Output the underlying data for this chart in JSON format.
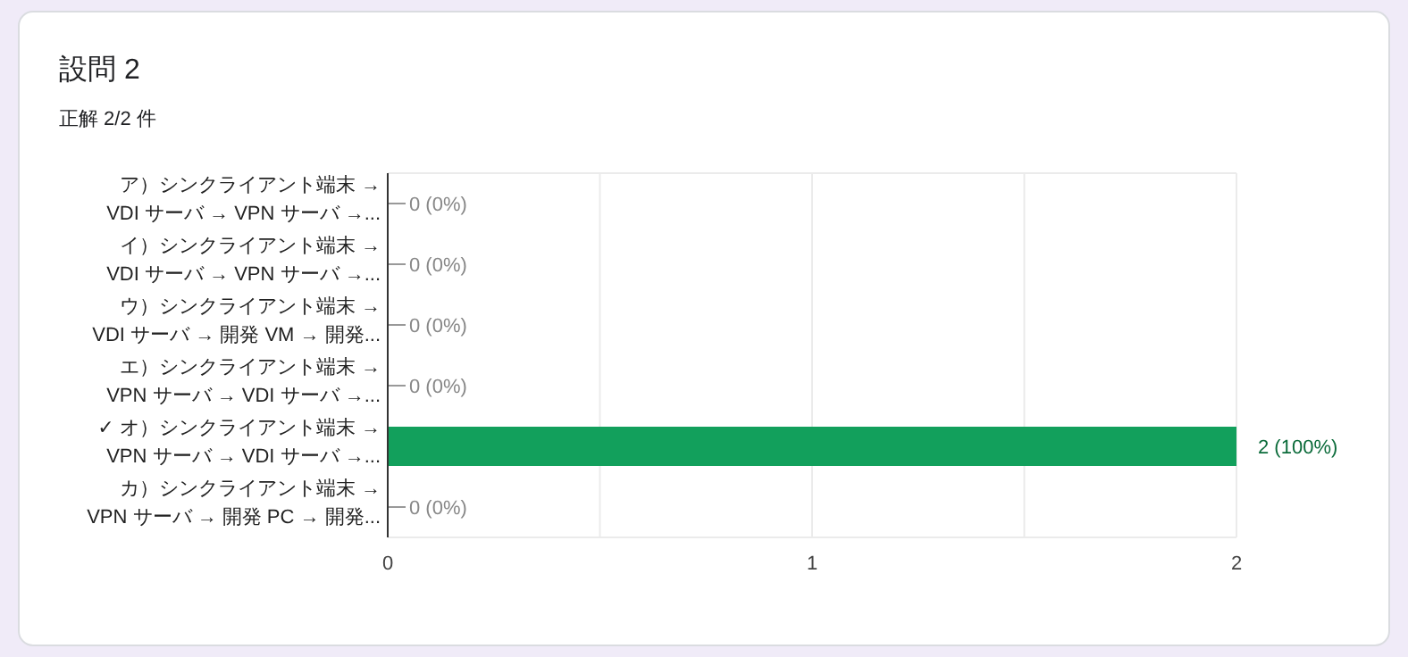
{
  "chart_data": {
    "type": "bar",
    "orientation": "horizontal",
    "title": "設問 2",
    "subtitle": "正解 2/2 件",
    "categories": [
      "ア）シンクライアント端末 →\nVDI サーバ → VPN サーバ →...",
      "イ）シンクライアント端末 →\nVDI サーバ → VPN サーバ →...",
      "ウ）シンクライアント端末 →\nVDI サーバ → 開発 VM → 開発...",
      "エ）シンクライアント端末 →\nVPN サーバ → VDI サーバ →...",
      "✓ オ）シンクライアント端末 →\nVPN サーバ → VDI サーバ →...",
      "カ）シンクライアント端末 →\nVPN サーバ → 開発 PC → 開発..."
    ],
    "values": [
      0,
      0,
      0,
      0,
      2,
      0
    ],
    "value_labels": [
      "0 (0%)",
      "0 (0%)",
      "0 (0%)",
      "0 (0%)",
      "2 (100%)",
      "0 (0%)"
    ],
    "color": "#12a05c",
    "xlim": [
      0,
      2
    ],
    "xticks": [
      0,
      {
        "value": 0.5,
        "label": null
      },
      1,
      {
        "value": 1.5,
        "label": null
      },
      2
    ],
    "grid": "x"
  }
}
